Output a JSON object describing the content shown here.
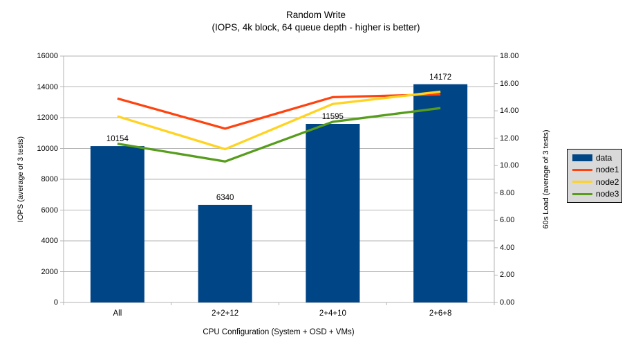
{
  "title": "Random Write",
  "subtitle": "(IOPS, 4k block, 64 queue depth - higher is better)",
  "colors": {
    "background": "#FFFFFF",
    "grid": "#B3B3B3",
    "text": "#000000",
    "bar": "#004586"
  },
  "chart_data": {
    "type": "bar",
    "subtype": "bar-with-line-overlay",
    "categories": [
      "All",
      "2+2+12",
      "2+4+10",
      "2+6+8"
    ],
    "bar_series": {
      "name": "data",
      "color": "#004586",
      "axis": "left",
      "values": [
        10154,
        6340,
        11595,
        14172
      ],
      "labels": [
        "10154",
        "6340",
        "11595",
        "14172"
      ]
    },
    "line_series": [
      {
        "name": "node1",
        "color": "#FF420E",
        "axis": "right",
        "values": [
          14.9,
          12.7,
          15.0,
          15.2
        ]
      },
      {
        "name": "node2",
        "color": "#FFD320",
        "axis": "right",
        "values": [
          13.6,
          11.2,
          14.5,
          15.4
        ]
      },
      {
        "name": "node3",
        "color": "#579D1C",
        "axis": "right",
        "values": [
          11.6,
          10.3,
          13.2,
          14.2
        ]
      }
    ],
    "left_axis": {
      "title": "IOPS (average of 3 tests)",
      "min": 0,
      "max": 16000,
      "step": 2000,
      "tick_labels": [
        "0",
        "2000",
        "4000",
        "6000",
        "8000",
        "10000",
        "12000",
        "14000",
        "16000"
      ]
    },
    "right_axis": {
      "title": "60s Load (average of 3 tests)",
      "min": 0,
      "max": 18,
      "step": 2,
      "tick_labels": [
        "0.00",
        "2.00",
        "4.00",
        "6.00",
        "8.00",
        "10.00",
        "12.00",
        "14.00",
        "16.00",
        "18.00"
      ]
    },
    "x_axis": {
      "title": "CPU Configuration (System + OSD + VMs)"
    },
    "grid": "horizontal",
    "legend": {
      "position": "right",
      "background": "#D9D9D9",
      "border": "#000000",
      "entries": [
        {
          "label": "data",
          "color": "#004586",
          "shape": "rect"
        },
        {
          "label": "node1",
          "color": "#FF420E",
          "shape": "line"
        },
        {
          "label": "node2",
          "color": "#FFD320",
          "shape": "line"
        },
        {
          "label": "node3",
          "color": "#579D1C",
          "shape": "line"
        }
      ]
    }
  }
}
